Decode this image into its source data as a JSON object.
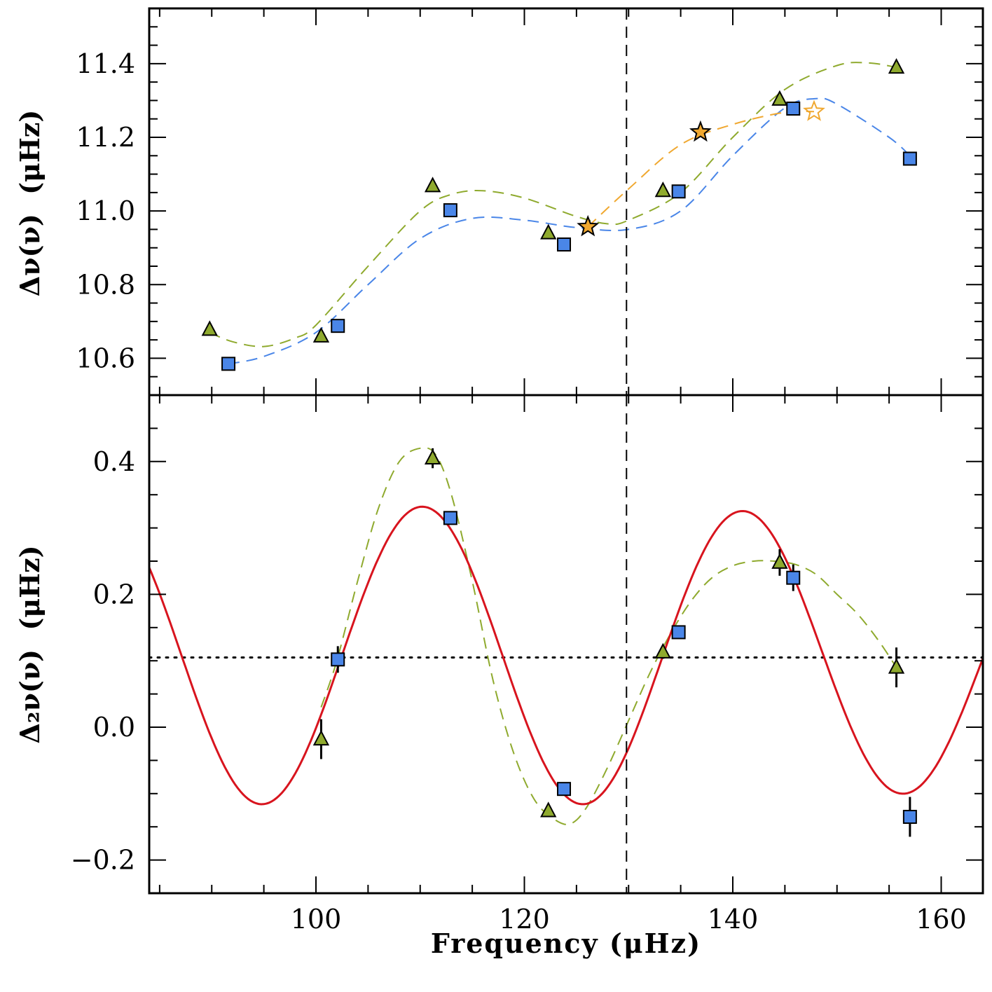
{
  "chart_data": [
    {
      "type": "scatter",
      "panel": "top",
      "title": "",
      "xlabel": "",
      "ylabel_main": "Δν(ν)",
      "ylabel_unit": "(μHz)",
      "xlim": [
        84,
        164
      ],
      "ylim": [
        10.5,
        11.55
      ],
      "xticks": [
        100,
        120,
        140,
        160
      ],
      "yticks": [
        10.6,
        10.8,
        11.0,
        11.2,
        11.4
      ],
      "ytick_labels": [
        "10.6",
        "10.8",
        "11.0",
        "11.2",
        "11.4"
      ],
      "vline_x": 129.8,
      "series": [
        {
          "name": "squares",
          "marker": "square",
          "color": "#4a86e8",
          "x": [
            91.6,
            102.1,
            112.9,
            123.8,
            134.8,
            145.8,
            157.0
          ],
          "y": [
            10.585,
            10.688,
            11.002,
            10.909,
            11.053,
            11.278,
            11.142
          ]
        },
        {
          "name": "triangles",
          "marker": "triangle",
          "color": "#8faa2e",
          "x": [
            89.8,
            100.5,
            111.2,
            122.3,
            133.3,
            144.5,
            155.7
          ],
          "y": [
            10.678,
            10.66,
            11.068,
            10.94,
            11.055,
            11.303,
            11.39
          ]
        },
        {
          "name": "stars",
          "marker": "star",
          "color": "#f0a830",
          "x": [
            126.1,
            136.9
          ],
          "y": [
            10.957,
            11.214
          ]
        },
        {
          "name": "open star",
          "marker": "star-open",
          "color": "#f0a830",
          "x": [
            147.8
          ],
          "y": [
            11.27
          ]
        },
        {
          "name": "fit squares (dashed)",
          "line": "dashed",
          "color": "#4a86e8",
          "x": [
            91.6,
            95,
            100,
            105,
            110,
            115,
            120,
            125,
            130,
            135,
            140,
            145,
            148,
            150,
            155,
            157
          ],
          "y": [
            10.585,
            10.605,
            10.67,
            10.8,
            10.925,
            10.98,
            10.975,
            10.955,
            10.95,
            11.0,
            11.15,
            11.28,
            11.305,
            11.29,
            11.2,
            11.15
          ]
        },
        {
          "name": "fit triangles (dashed)",
          "line": "dashed",
          "color": "#8faa2e",
          "x": [
            89.8,
            92,
            95,
            98,
            100,
            105,
            110,
            113,
            116,
            120,
            125,
            128,
            130,
            135,
            140,
            145,
            150,
            153,
            155.7
          ],
          "y": [
            10.67,
            10.645,
            10.632,
            10.655,
            10.69,
            10.85,
            11.0,
            11.045,
            11.055,
            11.035,
            10.985,
            10.965,
            10.975,
            11.05,
            11.2,
            11.33,
            11.395,
            11.402,
            11.39
          ]
        },
        {
          "name": "fit stars (dashed)",
          "line": "dashed",
          "color": "#f0a830",
          "x": [
            126.1,
            130,
            135,
            140,
            145,
            147.8
          ],
          "y": [
            10.957,
            11.06,
            11.18,
            11.235,
            11.268,
            11.27
          ]
        }
      ]
    },
    {
      "type": "scatter",
      "panel": "bottom",
      "title": "",
      "xlabel": "Frequency (μHz)",
      "ylabel_main": "Δ₂ν(ν)",
      "ylabel_unit": "(μHz)",
      "xlim": [
        84,
        164
      ],
      "ylim": [
        -0.25,
        0.5
      ],
      "xticks": [
        100,
        120,
        140,
        160
      ],
      "xtick_labels": [
        "100",
        "120",
        "140",
        "160"
      ],
      "yticks": [
        -0.2,
        0.0,
        0.2,
        0.4
      ],
      "ytick_labels": [
        "−0.2",
        "0.0",
        "0.2",
        "0.4"
      ],
      "vline_x": 129.8,
      "hline_y": 0.105,
      "sine_fit": {
        "name": "model fit (solid)",
        "color": "#d8141e",
        "offset": 0.108,
        "amplitude": 0.224,
        "period": 30.8,
        "peak_x": 110.2,
        "amp_decay_per_uHz": 0.0057
      },
      "series": [
        {
          "name": "squares",
          "marker": "square",
          "color": "#4a86e8",
          "x": [
            102.1,
            112.9,
            123.8,
            134.8,
            145.8,
            157.0
          ],
          "y": [
            0.102,
            0.315,
            -0.093,
            0.143,
            0.225,
            -0.135
          ],
          "yerr": [
            0.02,
            0.01,
            0.01,
            0.01,
            0.02,
            0.03
          ]
        },
        {
          "name": "triangles",
          "marker": "triangle",
          "color": "#8faa2e",
          "x": [
            100.5,
            111.2,
            122.3,
            133.3,
            144.5,
            155.7
          ],
          "y": [
            -0.018,
            0.405,
            -0.126,
            0.113,
            0.248,
            0.09
          ],
          "yerr": [
            0.03,
            0.015,
            0.008,
            0.01,
            0.02,
            0.03
          ]
        },
        {
          "name": "fit triangles (dashed)",
          "line": "dashed",
          "color": "#8faa2e",
          "x": [
            100.5,
            102,
            104,
            106,
            108,
            110,
            111.5,
            113,
            115,
            117,
            119,
            121,
            123,
            124.5,
            126,
            128,
            130,
            132,
            134,
            136,
            138,
            140,
            142,
            144,
            146,
            148,
            150,
            152,
            154,
            155.7
          ],
          "y": [
            0.03,
            0.1,
            0.22,
            0.33,
            0.4,
            0.42,
            0.41,
            0.35,
            0.22,
            0.07,
            -0.04,
            -0.11,
            -0.14,
            -0.145,
            -0.12,
            -0.06,
            0.01,
            0.08,
            0.14,
            0.19,
            0.225,
            0.243,
            0.25,
            0.25,
            0.245,
            0.23,
            0.2,
            0.17,
            0.13,
            0.09
          ]
        }
      ]
    }
  ]
}
